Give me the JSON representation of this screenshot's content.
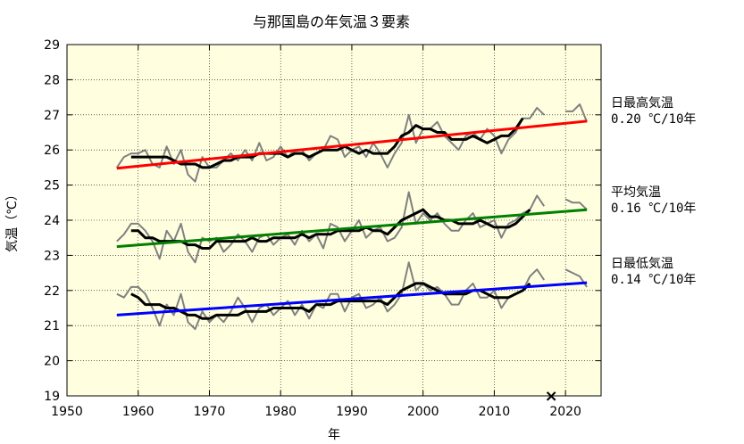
{
  "chart_data": {
    "type": "line",
    "title": "与那国島の年気温３要素",
    "xlabel": "年",
    "ylabel": "気温（℃）",
    "xlim": [
      1950,
      2025
    ],
    "ylim": [
      19,
      29
    ],
    "xticks": [
      1950,
      1960,
      1970,
      1980,
      1990,
      2000,
      2010,
      2020
    ],
    "yticks": [
      19,
      20,
      21,
      22,
      23,
      24,
      25,
      26,
      27,
      28,
      29
    ],
    "grid": true,
    "background": "#ffffe0",
    "x": [
      1957,
      1958,
      1959,
      1960,
      1961,
      1962,
      1963,
      1964,
      1965,
      1966,
      1967,
      1968,
      1969,
      1970,
      1971,
      1972,
      1973,
      1974,
      1975,
      1976,
      1977,
      1978,
      1979,
      1980,
      1981,
      1982,
      1983,
      1984,
      1985,
      1986,
      1987,
      1988,
      1989,
      1990,
      1991,
      1992,
      1993,
      1994,
      1995,
      1996,
      1997,
      1998,
      1999,
      2000,
      2001,
      2002,
      2003,
      2004,
      2005,
      2006,
      2007,
      2008,
      2009,
      2010,
      2011,
      2012,
      2013,
      2014,
      2015,
      2016,
      2017,
      2018,
      2019,
      2020,
      2021,
      2022,
      2023
    ],
    "series": [
      {
        "name": "日最高気温",
        "kind": "annual",
        "color": "#808080",
        "values": [
          25.5,
          25.8,
          25.9,
          25.9,
          26.0,
          25.6,
          25.5,
          26.1,
          25.6,
          26.0,
          25.3,
          25.1,
          25.8,
          25.5,
          25.5,
          25.7,
          25.9,
          25.7,
          26.0,
          25.7,
          26.2,
          25.7,
          25.8,
          26.1,
          25.8,
          26.0,
          26.0,
          25.7,
          25.9,
          26.0,
          26.4,
          26.3,
          25.8,
          26.0,
          26.1,
          25.8,
          26.2,
          25.9,
          25.5,
          25.9,
          26.2,
          27.0,
          26.2,
          26.6,
          26.6,
          26.8,
          26.4,
          26.2,
          26.0,
          26.4,
          26.5,
          26.3,
          26.6,
          26.4,
          25.9,
          26.3,
          26.5,
          26.9,
          26.9,
          27.2,
          27.0,
          null,
          null,
          27.1,
          27.1,
          27.3,
          26.8
        ]
      },
      {
        "name": "日最高気温",
        "kind": "5-year running mean",
        "color": "#000000",
        "values": [
          null,
          null,
          25.8,
          25.8,
          25.8,
          25.8,
          25.8,
          25.8,
          25.7,
          25.6,
          25.6,
          25.6,
          25.5,
          25.5,
          25.6,
          25.7,
          25.7,
          25.8,
          25.8,
          25.8,
          25.9,
          25.9,
          25.9,
          25.9,
          25.8,
          25.9,
          25.9,
          25.8,
          25.9,
          26.0,
          26.0,
          26.0,
          26.1,
          26.0,
          25.9,
          26.0,
          25.9,
          25.9,
          25.9,
          26.1,
          26.4,
          26.5,
          26.7,
          26.6,
          26.6,
          26.5,
          26.5,
          26.3,
          26.3,
          26.3,
          26.4,
          26.3,
          26.2,
          26.3,
          26.4,
          26.4,
          26.6,
          26.9,
          null,
          null,
          null,
          null,
          null,
          null,
          null,
          null,
          null
        ]
      },
      {
        "name": "日最高気温",
        "kind": "trend",
        "color": "#ff0000",
        "x": [
          1957,
          2023
        ],
        "values": [
          25.48,
          26.82
        ]
      },
      {
        "name": "平均気温",
        "kind": "annual",
        "color": "#808080",
        "values": [
          23.4,
          23.6,
          23.9,
          23.9,
          23.7,
          23.4,
          22.9,
          23.7,
          23.4,
          23.9,
          23.1,
          22.8,
          23.5,
          23.4,
          23.5,
          23.1,
          23.3,
          23.6,
          23.4,
          23.1,
          23.5,
          23.6,
          23.3,
          23.5,
          23.6,
          23.3,
          23.7,
          23.4,
          23.6,
          23.2,
          23.9,
          23.8,
          23.4,
          23.7,
          24.0,
          23.5,
          23.7,
          23.8,
          23.4,
          23.5,
          23.8,
          24.8,
          23.9,
          24.2,
          24.0,
          24.2,
          23.9,
          23.7,
          23.7,
          24.0,
          24.2,
          23.8,
          23.9,
          24.0,
          23.5,
          23.9,
          24.0,
          24.2,
          24.3,
          24.7,
          24.4,
          null,
          null,
          24.6,
          24.5,
          24.5,
          24.3
        ]
      },
      {
        "name": "平均気温",
        "kind": "5-year running mean",
        "color": "#000000",
        "values": [
          null,
          null,
          23.7,
          23.7,
          23.5,
          23.5,
          23.4,
          23.4,
          23.4,
          23.4,
          23.3,
          23.3,
          23.2,
          23.2,
          23.4,
          23.4,
          23.4,
          23.4,
          23.4,
          23.5,
          23.4,
          23.4,
          23.5,
          23.5,
          23.5,
          23.5,
          23.6,
          23.5,
          23.6,
          23.6,
          23.6,
          23.7,
          23.7,
          23.7,
          23.7,
          23.8,
          23.7,
          23.7,
          23.6,
          23.8,
          24.0,
          24.1,
          24.2,
          24.3,
          24.1,
          24.1,
          24.0,
          24.0,
          23.9,
          23.9,
          23.9,
          24.0,
          23.9,
          23.8,
          23.8,
          23.8,
          23.9,
          24.1,
          24.3,
          null,
          null,
          null,
          null,
          null,
          null,
          null,
          null
        ]
      },
      {
        "name": "平均気温",
        "kind": "trend",
        "color": "#008000",
        "x": [
          1957,
          2023
        ],
        "values": [
          23.25,
          24.3
        ]
      },
      {
        "name": "日最低気温",
        "kind": "annual",
        "color": "#808080",
        "values": [
          21.9,
          21.8,
          22.1,
          22.1,
          21.9,
          21.5,
          21.0,
          21.6,
          21.3,
          21.9,
          21.1,
          20.9,
          21.4,
          21.1,
          21.3,
          21.1,
          21.4,
          21.8,
          21.5,
          21.1,
          21.5,
          21.6,
          21.3,
          21.5,
          21.7,
          21.3,
          21.6,
          21.2,
          21.6,
          21.5,
          21.9,
          21.9,
          21.4,
          21.8,
          21.9,
          21.5,
          21.6,
          21.8,
          21.4,
          21.6,
          21.9,
          22.8,
          22.0,
          22.2,
          22.0,
          22.1,
          21.9,
          21.6,
          21.6,
          22.0,
          22.2,
          21.8,
          21.8,
          22.0,
          21.5,
          21.8,
          21.9,
          22.0,
          22.4,
          22.6,
          22.3,
          null,
          null,
          22.6,
          22.5,
          22.4,
          22.1
        ]
      },
      {
        "name": "日最低気温",
        "kind": "5-year running mean",
        "color": "#000000",
        "values": [
          null,
          null,
          21.9,
          21.8,
          21.6,
          21.6,
          21.6,
          21.5,
          21.5,
          21.4,
          21.3,
          21.3,
          21.2,
          21.2,
          21.3,
          21.3,
          21.3,
          21.3,
          21.4,
          21.4,
          21.4,
          21.4,
          21.5,
          21.5,
          21.5,
          21.5,
          21.5,
          21.4,
          21.6,
          21.6,
          21.6,
          21.7,
          21.7,
          21.7,
          21.7,
          21.7,
          21.7,
          21.7,
          21.6,
          21.8,
          22.0,
          22.1,
          22.2,
          22.2,
          22.1,
          22.0,
          21.9,
          21.9,
          21.9,
          21.9,
          22.0,
          22.0,
          21.9,
          21.8,
          21.8,
          21.8,
          21.9,
          22.0,
          22.2,
          null,
          null,
          null,
          null,
          null,
          null,
          null,
          null
        ]
      },
      {
        "name": "日最低気温",
        "kind": "trend",
        "color": "#0000ff",
        "x": [
          1957,
          2023
        ],
        "values": [
          21.3,
          22.22
        ]
      }
    ],
    "labels": [
      {
        "name": "日最高気温",
        "trend_text": "0.20 ℃/10年"
      },
      {
        "name": "平均気温",
        "trend_text": "0.16 ℃/10年"
      },
      {
        "name": "日最低気温",
        "trend_text": "0.14 ℃/10年"
      }
    ],
    "markers": [
      {
        "symbol": "×",
        "x": 2018,
        "y": 19
      }
    ]
  }
}
